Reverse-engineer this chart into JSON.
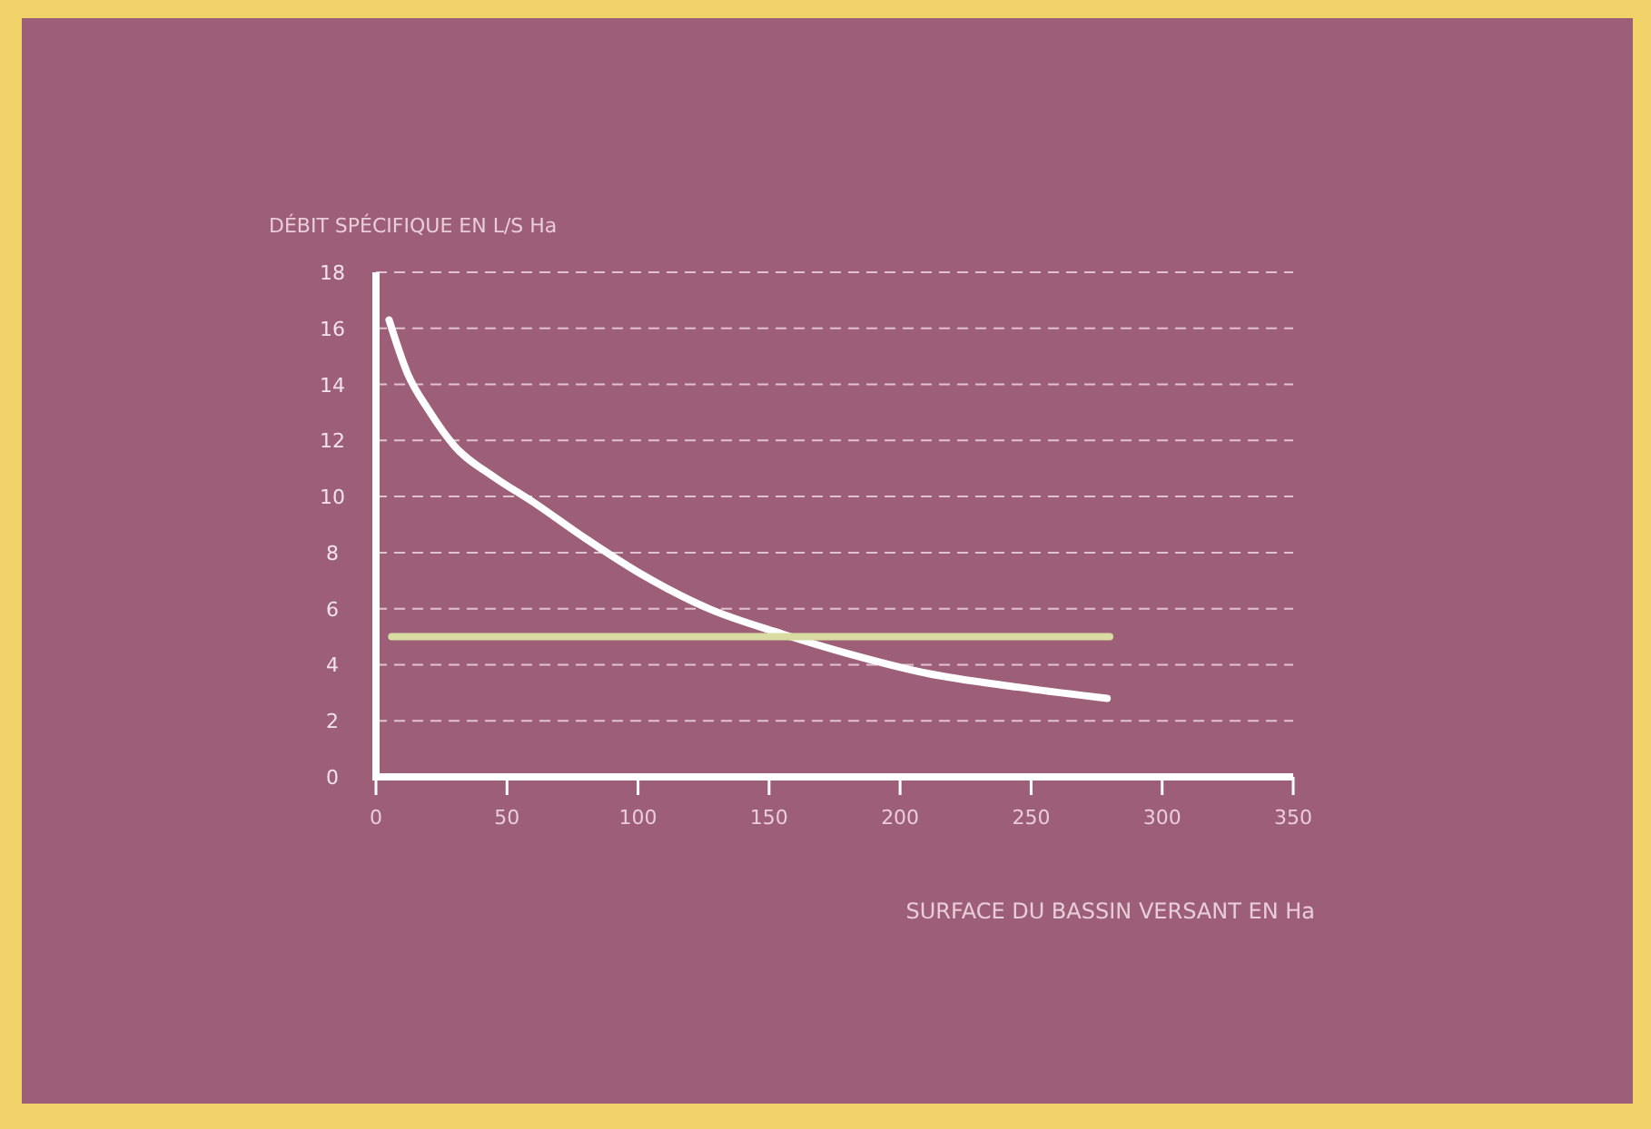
{
  "chart_data": {
    "type": "line",
    "xlabel": "SURFACE DU BASSIN VERSANT EN Ha",
    "ylabel": "DÉBIT SPÉCIFIQUE EN L/S Ha",
    "xlim": [
      0,
      350
    ],
    "xticks": [
      0,
      50,
      100,
      150,
      200,
      250,
      300,
      350
    ],
    "ylim": [
      0,
      18
    ],
    "yticks": [
      0,
      2,
      4,
      6,
      8,
      10,
      12,
      14,
      16,
      18
    ],
    "grid": "y",
    "marker": "none",
    "series": [
      {
        "color": "#ffffff",
        "x": [
          5,
          12,
          20,
          30,
          45,
          60,
          80,
          100,
          127,
          155,
          180,
          210,
          245,
          279
        ],
        "values": [
          16.3,
          14.4,
          13.1,
          11.8,
          10.7,
          9.8,
          8.5,
          7.3,
          6.0,
          5.1,
          4.4,
          3.7,
          3.2,
          2.8
        ]
      },
      {
        "color": "#d8dca0",
        "x": [
          6,
          280
        ],
        "values": [
          5,
          5
        ]
      }
    ]
  }
}
